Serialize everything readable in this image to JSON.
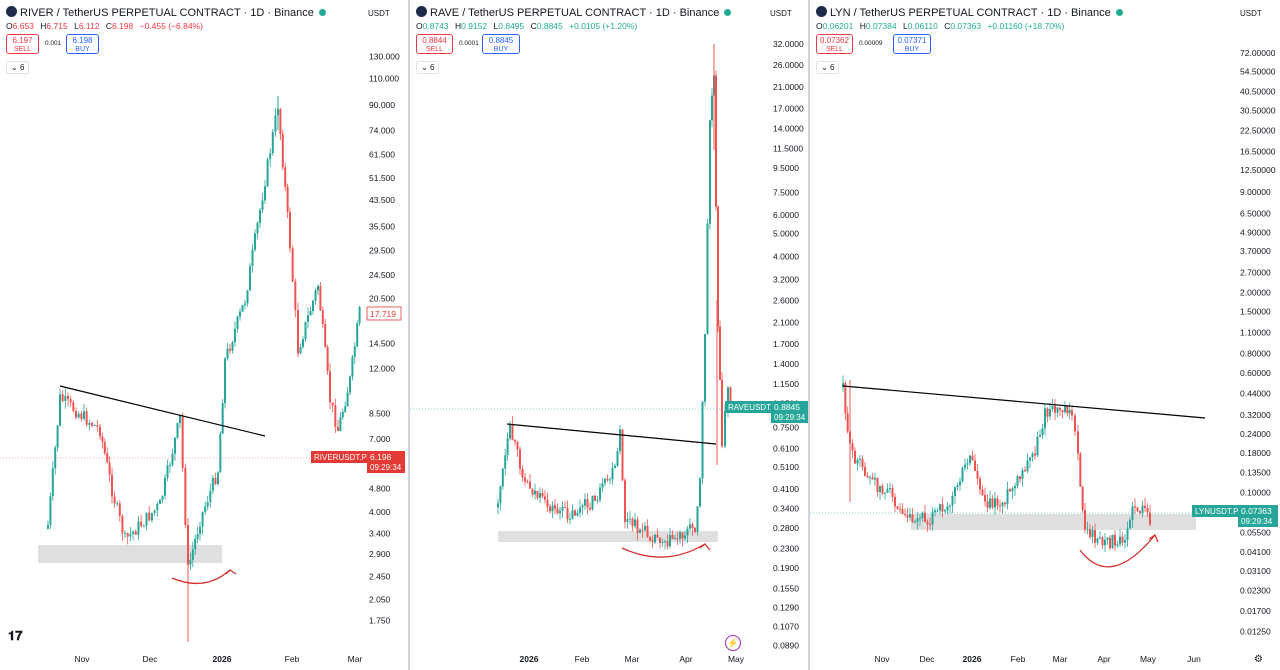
{
  "chart_data": [
    {
      "type": "candlestick",
      "title": "RIVER / TetherUS PERPETUAL CONTRACT · 1D · Binance",
      "ohlc": {
        "o": "6.653",
        "h": "6.715",
        "l": "6.112",
        "c": "6.198",
        "chg": "−0.455 (−6.84%)"
      },
      "sell_price": "6.197",
      "buy_price": "6.198",
      "spread": "0.001",
      "sell_label": "SELL",
      "buy_label": "BUY",
      "indicator_count": "6",
      "currency": "USDT",
      "y_scale": "log",
      "y_ticks": [
        "130.000",
        "110.000",
        "90.000",
        "74.000",
        "61.500",
        "51.500",
        "43.500",
        "35.500",
        "29.500",
        "24.500",
        "20.500",
        "14.500",
        "12.000",
        "8.500",
        "7.000",
        "4.800",
        "4.000",
        "3.400",
        "2.900",
        "2.450",
        "2.050",
        "1.750"
      ],
      "ylim": [
        1.6,
        150
      ],
      "x_ticks": [
        "Nov",
        "Dec",
        "2026",
        "Feb",
        "Mar"
      ],
      "last_price_label": "RIVERUSDT.P",
      "last_price": "6.198",
      "countdown": "09:29:34",
      "extra_price_label": "17.719",
      "trend_color": "#000000",
      "up_color": "#26a69a",
      "down_color": "#ef5350",
      "key_points": [
        {
          "date": "Nov",
          "price": 10.5
        },
        {
          "date": "Dec",
          "price": 3.4
        },
        {
          "date": "Dec",
          "price": 2.8
        },
        {
          "date": "2026",
          "price": 3.4
        },
        {
          "date": "Jan",
          "price": 87
        },
        {
          "date": "Feb",
          "price": 8.0
        },
        {
          "date": "Mar",
          "price": 20.0
        }
      ]
    },
    {
      "type": "candlestick",
      "title": "RAVE / TetherUS PERPETUAL CONTRACT · 1D · Binance",
      "ohlc": {
        "o": "0.8743",
        "h": "0.9152",
        "l": "0.8495",
        "c": "0.8845",
        "chg": "+0.0105 (+1.20%)"
      },
      "sell_price": "0.8844",
      "buy_price": "0.8845",
      "spread": "0.0001",
      "sell_label": "SELL",
      "buy_label": "BUY",
      "indicator_count": "6",
      "currency": "USDT",
      "y_scale": "log",
      "y_ticks": [
        "32.0000",
        "26.0000",
        "21.0000",
        "17.0000",
        "14.0000",
        "11.5000",
        "9.5000",
        "7.5000",
        "6.0000",
        "5.0000",
        "4.0000",
        "3.2000",
        "2.6000",
        "2.1000",
        "1.7000",
        "1.4000",
        "1.1500",
        "0.9500",
        "0.7500",
        "0.6100",
        "0.5100",
        "0.4100",
        "0.3400",
        "0.2800",
        "0.2300",
        "0.1900",
        "0.1550",
        "0.1290",
        "0.1070",
        "0.0890"
      ],
      "ylim": [
        0.085,
        36
      ],
      "x_ticks": [
        "2026",
        "Feb",
        "Mar",
        "Apr",
        "May"
      ],
      "last_price_label": "RAVEUSDT.P",
      "last_price": "0.8845",
      "countdown": "09:29:34",
      "trend_color": "#000000",
      "up_color": "#26a69a",
      "down_color": "#ef5350"
    },
    {
      "type": "candlestick",
      "title": "LYN / TetherUS PERPETUAL CONTRACT · 1D · Binance",
      "ohlc": {
        "o": "0.06201",
        "h": "0.07384",
        "l": "0.06110",
        "c": "0.07363",
        "chg": "+0.01160 (+18.70%)"
      },
      "sell_price": "0.07362",
      "buy_price": "0.07371",
      "spread": "0.00009",
      "sell_label": "SELL",
      "buy_label": "BUY",
      "indicator_count": "6",
      "currency": "USDT",
      "y_scale": "log",
      "y_ticks": [
        "72.00000",
        "54.50000",
        "40.50000",
        "30.50000",
        "22.50000",
        "16.50000",
        "12.50000",
        "9.00000",
        "6.50000",
        "4.90000",
        "3.70000",
        "2.70000",
        "2.00000",
        "1.50000",
        "1.10000",
        "0.80000",
        "0.60000",
        "0.44000",
        "0.32000",
        "0.24000",
        "0.18000",
        "0.13500",
        "0.10000",
        "0.07400",
        "0.05500",
        "0.04100",
        "0.03100",
        "0.02300",
        "0.01700",
        "0.01250"
      ],
      "ylim": [
        0.011,
        90
      ],
      "x_ticks": [
        "Nov",
        "Dec",
        "2026",
        "Feb",
        "Mar",
        "Apr",
        "May",
        "Jun"
      ],
      "last_price_label": "LYNUSDT.P",
      "last_price": "0.07363",
      "countdown": "09:29:34",
      "trend_color": "#000000",
      "up_color": "#26a69a",
      "down_color": "#ef5350"
    }
  ]
}
